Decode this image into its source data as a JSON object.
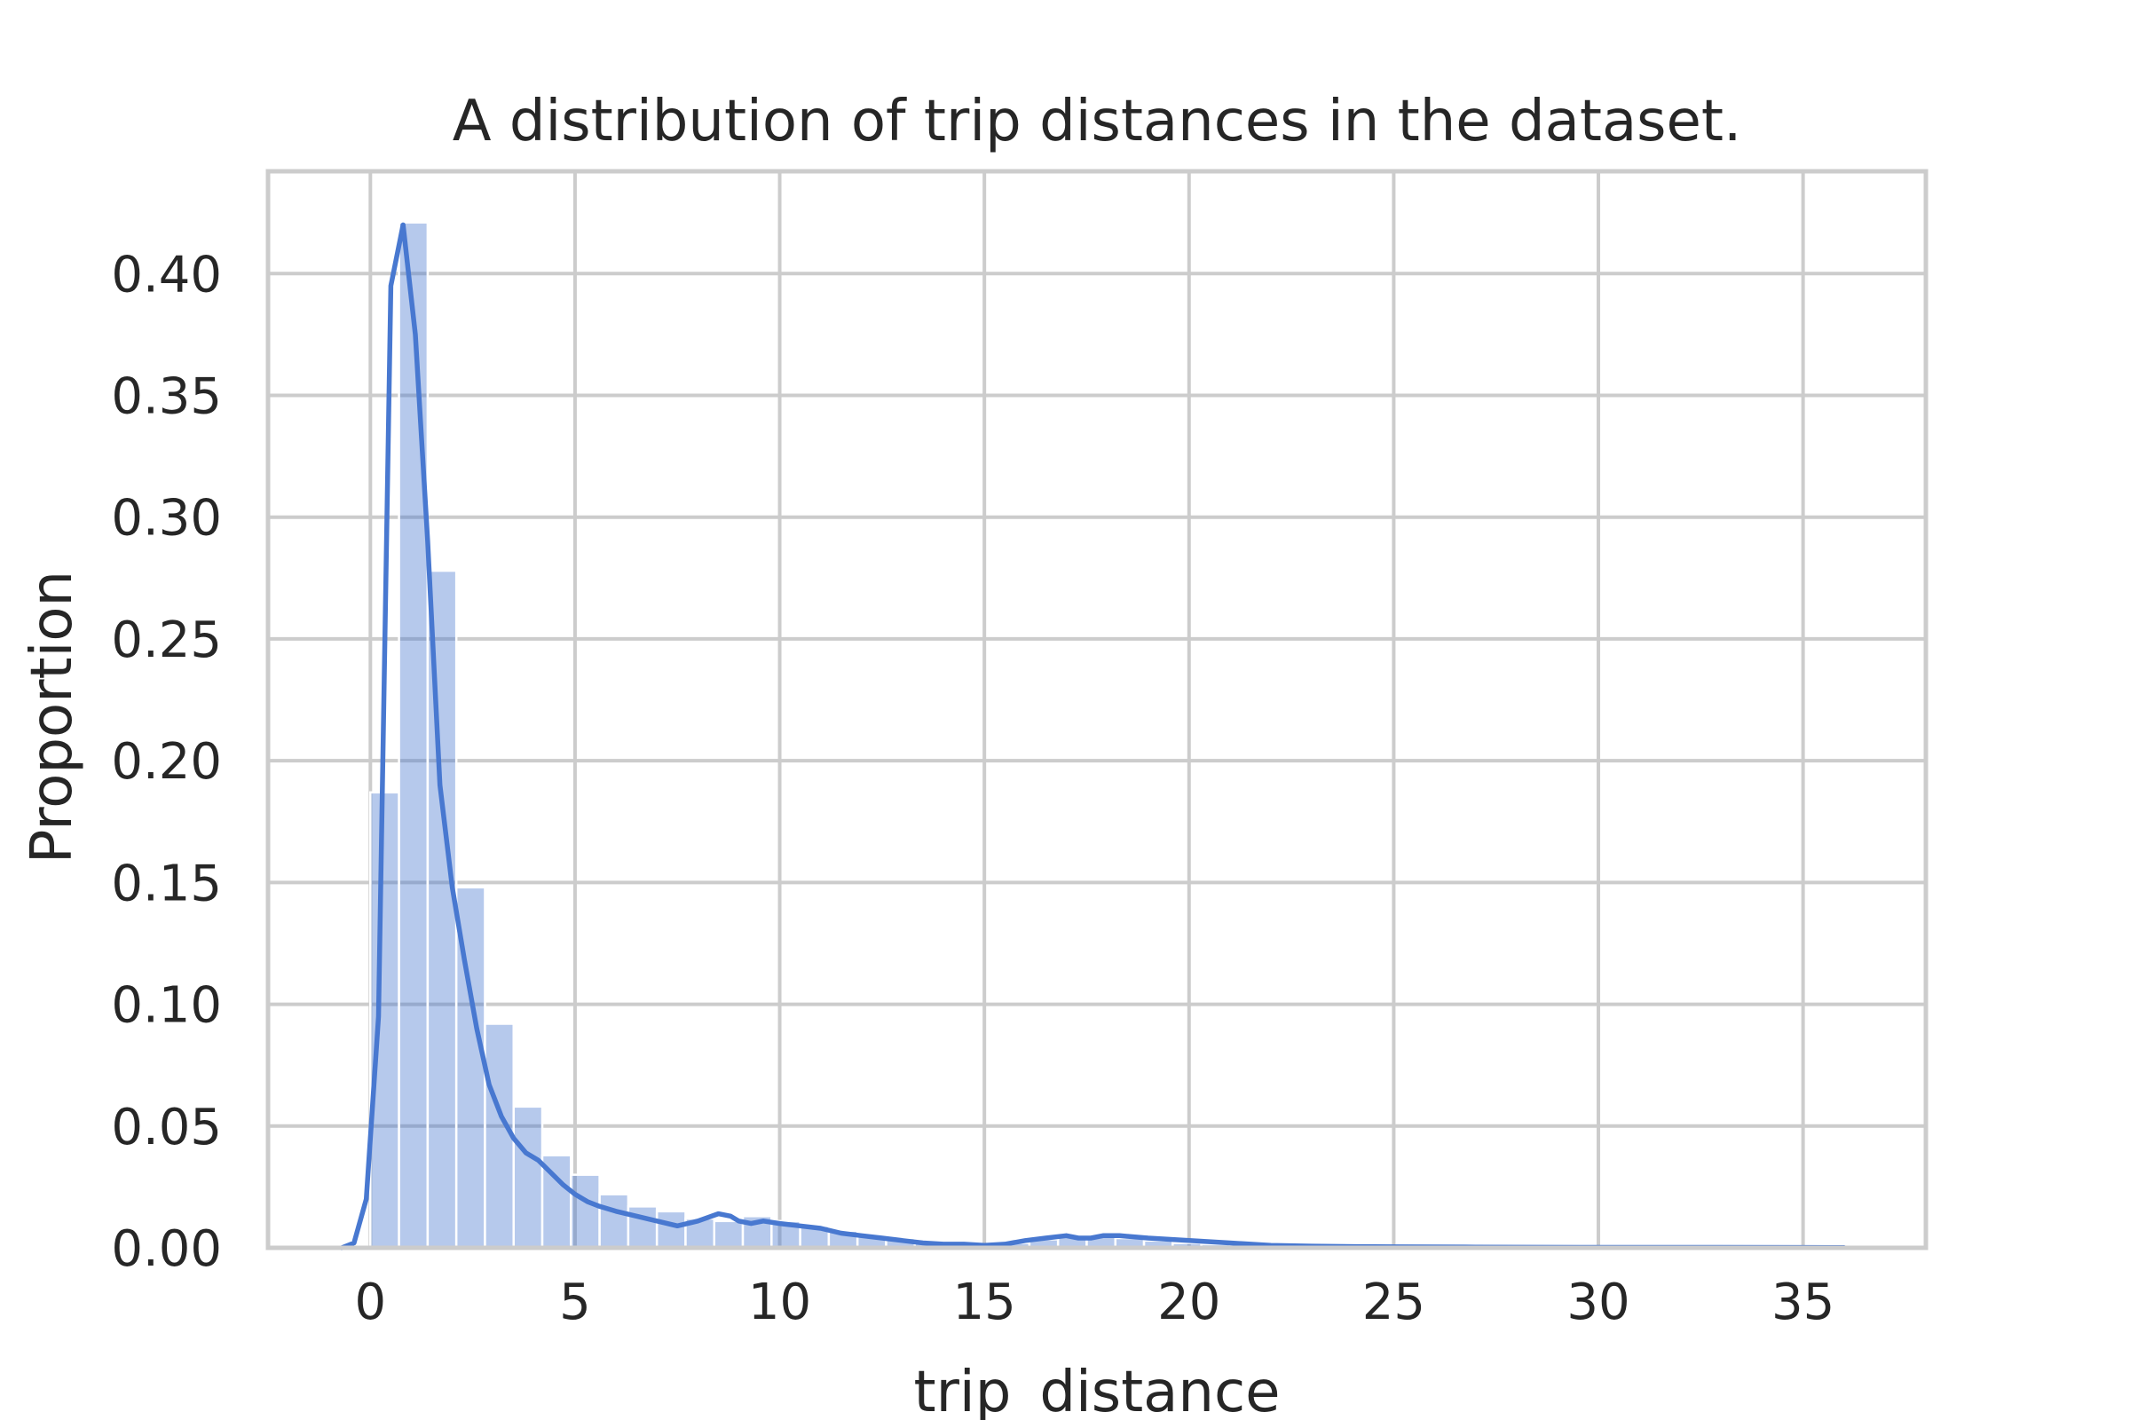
{
  "chart_data": {
    "type": "bar",
    "title": "A distribution of trip distances in the dataset.",
    "xlabel": "trip_distance",
    "ylabel": "Proportion",
    "xlim": [
      -2.5,
      38
    ],
    "ylim": [
      0,
      0.442
    ],
    "x_ticks": [
      0,
      5,
      10,
      15,
      20,
      25,
      30,
      35
    ],
    "x_tick_labels": [
      "0",
      "5",
      "10",
      "15",
      "20",
      "25",
      "30",
      "35"
    ],
    "y_ticks": [
      0.0,
      0.05,
      0.1,
      0.15,
      0.2,
      0.25,
      0.3,
      0.35,
      0.4
    ],
    "y_tick_labels": [
      "0.00",
      "0.05",
      "0.10",
      "0.15",
      "0.20",
      "0.25",
      "0.30",
      "0.35",
      "0.40"
    ],
    "grid": true,
    "colors": {
      "bar": "#4878d0",
      "line": "#4878d0",
      "grid": "#cccccc",
      "text": "#262626"
    },
    "histogram": {
      "name": "histogram",
      "bin_width": 0.7,
      "bin_starts": [
        0.0,
        0.7,
        1.4,
        2.1,
        2.8,
        3.5,
        4.2,
        4.9,
        5.6,
        6.3,
        7.0,
        7.7,
        8.4,
        9.1,
        9.8,
        10.5,
        11.2,
        11.9,
        12.6,
        13.3,
        14.0,
        14.7,
        15.4,
        16.1,
        16.8,
        17.5,
        18.2,
        18.9,
        19.6,
        20.3,
        21.0,
        21.7,
        22.4,
        23.1,
        23.8,
        24.5,
        25.2,
        25.9,
        26.6,
        27.3,
        28.0,
        28.7,
        29.4,
        30.1,
        30.8,
        31.5,
        32.2,
        32.9,
        33.6,
        34.3,
        35.0
      ],
      "values": [
        0.187,
        0.421,
        0.278,
        0.148,
        0.092,
        0.058,
        0.038,
        0.03,
        0.022,
        0.017,
        0.015,
        0.012,
        0.011,
        0.013,
        0.011,
        0.009,
        0.007,
        0.005,
        0.004,
        0.002,
        0.0015,
        0.0015,
        0.002,
        0.0035,
        0.005,
        0.005,
        0.004,
        0.003,
        0.002,
        0.0015,
        0.001,
        0.0008,
        0.0006,
        0.0005,
        0.0004,
        0.0003,
        0.0003,
        0.0003,
        0.0002,
        0.0002,
        0.0002,
        0.0002,
        0.0002,
        0.0002,
        0.0002,
        0.0002,
        0.0002,
        0.0002,
        0.0002,
        0.0002,
        0.0002
      ]
    },
    "kde": {
      "name": "kde",
      "x": [
        -0.7,
        -0.4,
        -0.1,
        0.2,
        0.5,
        0.8,
        1.1,
        1.4,
        1.7,
        2.0,
        2.3,
        2.6,
        2.9,
        3.2,
        3.5,
        3.8,
        4.1,
        4.4,
        4.7,
        5.0,
        5.3,
        5.6,
        6.0,
        6.5,
        7.0,
        7.5,
        8.0,
        8.5,
        8.8,
        9.0,
        9.3,
        9.6,
        10.0,
        10.5,
        11.0,
        11.5,
        12.0,
        12.5,
        13.0,
        13.5,
        14.0,
        14.5,
        15.0,
        15.5,
        16.0,
        16.5,
        17.0,
        17.3,
        17.6,
        17.9,
        18.3,
        19.0,
        20.0,
        21.0,
        22.0,
        23.0,
        24.0,
        25.0,
        27.0,
        30.0,
        33.0,
        36.0
      ],
      "y": [
        0.0,
        0.002,
        0.02,
        0.095,
        0.395,
        0.42,
        0.375,
        0.29,
        0.19,
        0.148,
        0.118,
        0.09,
        0.067,
        0.054,
        0.045,
        0.039,
        0.036,
        0.031,
        0.026,
        0.022,
        0.019,
        0.017,
        0.015,
        0.013,
        0.011,
        0.009,
        0.011,
        0.014,
        0.013,
        0.011,
        0.01,
        0.011,
        0.01,
        0.009,
        0.008,
        0.006,
        0.005,
        0.004,
        0.003,
        0.002,
        0.0015,
        0.0015,
        0.001,
        0.0015,
        0.003,
        0.004,
        0.005,
        0.004,
        0.004,
        0.005,
        0.005,
        0.004,
        0.003,
        0.002,
        0.001,
        0.0007,
        0.0005,
        0.0004,
        0.0003,
        0.0002,
        0.0002,
        0.0001
      ]
    }
  }
}
